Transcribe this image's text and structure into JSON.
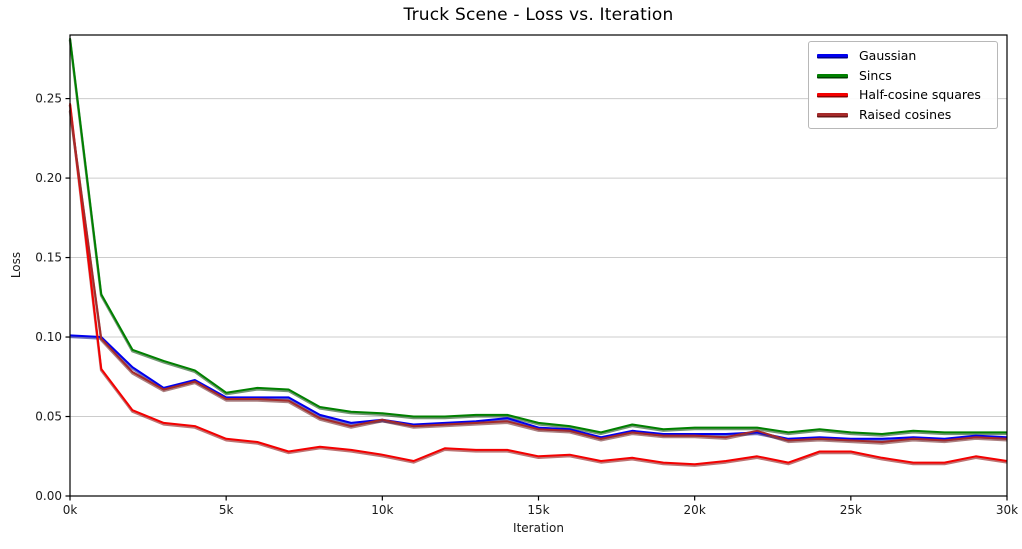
{
  "chart_data": {
    "type": "line",
    "title": "Truck Scene - Loss vs. Iteration",
    "xlabel": "Iteration",
    "ylabel": "Loss",
    "xlim": [
      0,
      30000
    ],
    "ylim": [
      0.0,
      0.29
    ],
    "grid": "horizontal-only",
    "grid_color": "#cccccc",
    "spine_color": "#000000",
    "legend_position": "upper-right",
    "xticks": [
      {
        "v": 0,
        "label": "0k"
      },
      {
        "v": 5000,
        "label": "5k"
      },
      {
        "v": 10000,
        "label": "10k"
      },
      {
        "v": 15000,
        "label": "15k"
      },
      {
        "v": 20000,
        "label": "20k"
      },
      {
        "v": 25000,
        "label": "25k"
      },
      {
        "v": 30000,
        "label": "30k"
      }
    ],
    "yticks": [
      {
        "v": 0.0,
        "label": "0.00"
      },
      {
        "v": 0.05,
        "label": "0.05"
      },
      {
        "v": 0.1,
        "label": "0.10"
      },
      {
        "v": 0.15,
        "label": "0.15"
      },
      {
        "v": 0.2,
        "label": "0.20"
      },
      {
        "v": 0.25,
        "label": "0.25"
      }
    ],
    "x": [
      0,
      1000,
      2000,
      3000,
      4000,
      5000,
      6000,
      7000,
      8000,
      9000,
      10000,
      11000,
      12000,
      13000,
      14000,
      15000,
      16000,
      17000,
      18000,
      19000,
      20000,
      21000,
      22000,
      23000,
      24000,
      25000,
      26000,
      27000,
      28000,
      29000,
      30000
    ],
    "series": [
      {
        "name": "Gaussian",
        "color": "#0000ee",
        "edge_color": "#00008b",
        "values": [
          0.101,
          0.1,
          0.081,
          0.068,
          0.073,
          0.062,
          0.062,
          0.062,
          0.051,
          0.046,
          0.048,
          0.045,
          0.046,
          0.047,
          0.049,
          0.043,
          0.042,
          0.037,
          0.041,
          0.039,
          0.039,
          0.039,
          0.04,
          0.036,
          0.037,
          0.036,
          0.036,
          0.037,
          0.036,
          0.038,
          0.037
        ]
      },
      {
        "name": "Sincs",
        "color": "#008000",
        "edge_color": "#004000",
        "values": [
          0.288,
          0.127,
          0.092,
          0.085,
          0.079,
          0.065,
          0.068,
          0.067,
          0.056,
          0.053,
          0.052,
          0.05,
          0.05,
          0.051,
          0.051,
          0.046,
          0.044,
          0.04,
          0.045,
          0.042,
          0.043,
          0.043,
          0.043,
          0.04,
          0.042,
          0.04,
          0.039,
          0.041,
          0.04,
          0.04,
          0.04
        ]
      },
      {
        "name": "Half-cosine squares",
        "color": "#f40000",
        "edge_color": "#8b0000",
        "values": [
          0.247,
          0.08,
          0.054,
          0.046,
          0.044,
          0.036,
          0.034,
          0.028,
          0.031,
          0.029,
          0.026,
          0.022,
          0.03,
          0.029,
          0.029,
          0.025,
          0.026,
          0.022,
          0.024,
          0.021,
          0.02,
          0.022,
          0.025,
          0.021,
          0.028,
          0.028,
          0.024,
          0.021,
          0.021,
          0.025,
          0.022
        ]
      },
      {
        "name": "Raised cosines",
        "color": "#a52a2a",
        "edge_color": "#671717",
        "values": [
          0.243,
          0.099,
          0.078,
          0.067,
          0.072,
          0.061,
          0.061,
          0.06,
          0.049,
          0.044,
          0.048,
          0.044,
          0.045,
          0.046,
          0.047,
          0.042,
          0.041,
          0.036,
          0.04,
          0.038,
          0.038,
          0.037,
          0.041,
          0.035,
          0.036,
          0.035,
          0.034,
          0.036,
          0.035,
          0.037,
          0.036
        ]
      }
    ]
  }
}
